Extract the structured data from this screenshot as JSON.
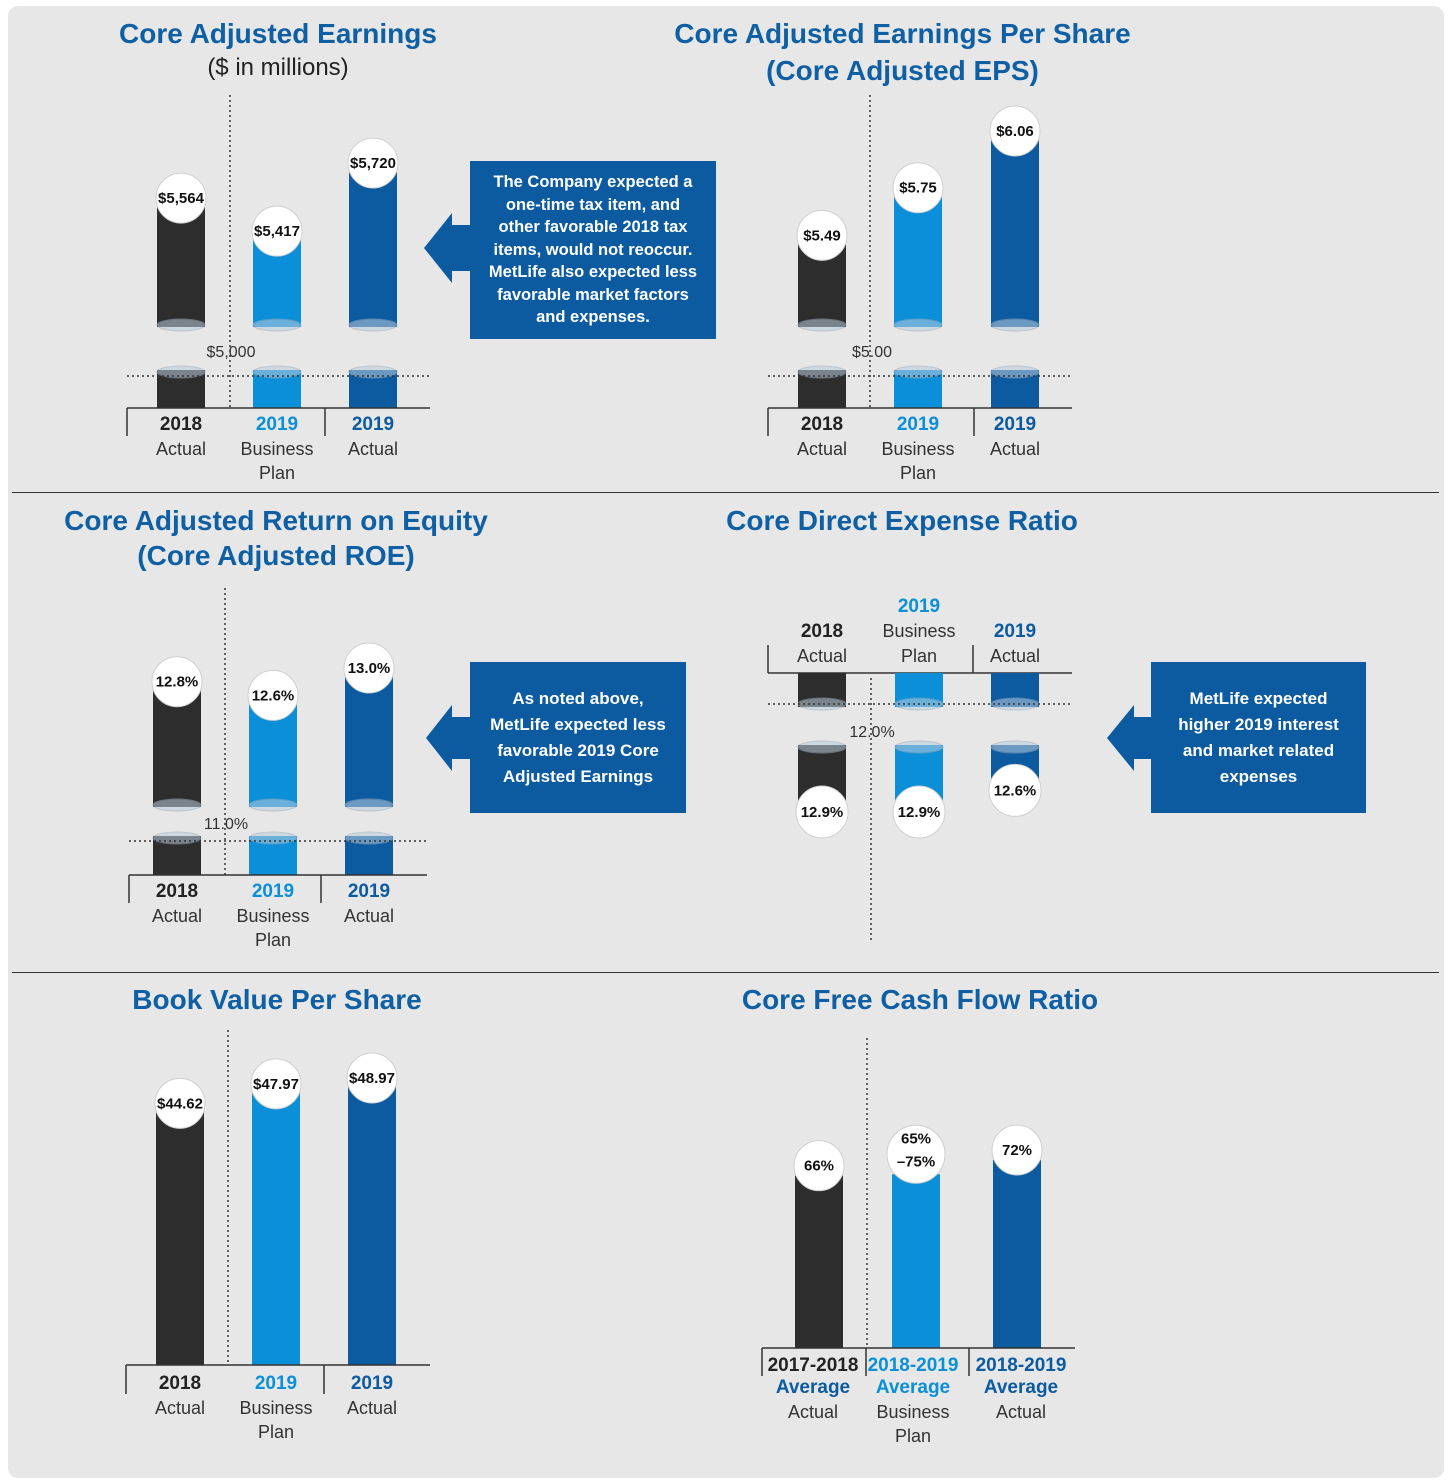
{
  "colors": {
    "actual_2018": "#2d2d2d",
    "plan_2019": "#0a8fd8",
    "actual_2019": "#0c5ba1",
    "title": "#0e5fa3",
    "callout_bg": "#0c5ba1"
  },
  "panels": {
    "earnings": {
      "title": "Core Adjusted Earnings",
      "subtitle": "($ in millions)",
      "baseline_label": "$5,000"
    },
    "eps": {
      "title_line1": "Core Adjusted Earnings Per Share",
      "title_line2": "(Core Adjusted EPS)",
      "baseline_label": "$5.00"
    },
    "roe": {
      "title_line1": "Core Adjusted Return on Equity",
      "title_line2": "(Core Adjusted ROE)",
      "baseline_label": "11.0%"
    },
    "expense": {
      "title": "Core Direct Expense Ratio",
      "baseline_label": "12.0%"
    },
    "bvps": {
      "title": "Book Value Per Share"
    },
    "fcf": {
      "title": "Core Free Cash Flow Ratio"
    }
  },
  "callouts": {
    "earnings": "The Company expected a one-time tax item, and other favorable 2018 tax items, would not reoccur. MetLife also expected less favorable market factors and expenses.",
    "roe": "As noted above, MetLife expected less favorable 2019 Core Adjusted Earnings",
    "expense": "MetLife expected higher 2019 interest and market related expenses"
  },
  "chart_data": [
    {
      "type": "bar",
      "title": "Core Adjusted Earnings",
      "subtitle": "($ in millions)",
      "categories": [
        "2018 Actual",
        "2019 Business Plan",
        "2019 Actual"
      ],
      "values": [
        5564,
        5417,
        5720
      ],
      "value_labels": [
        "$5,564",
        "$5,417",
        "$5,720"
      ],
      "axis_break": true,
      "baseline": 5000,
      "baseline_label": "$5,000",
      "cat_year": [
        "2018",
        "2019",
        "2019"
      ],
      "cat_sub": [
        [
          "Actual"
        ],
        [
          "Business",
          "Plan"
        ],
        [
          "Actual"
        ]
      ]
    },
    {
      "type": "bar",
      "title": "Core Adjusted Earnings Per Share (Core Adjusted EPS)",
      "categories": [
        "2018 Actual",
        "2019 Business Plan",
        "2019 Actual"
      ],
      "values": [
        5.49,
        5.75,
        6.06
      ],
      "value_labels": [
        "$5.49",
        "$5.75",
        "$6.06"
      ],
      "axis_break": true,
      "baseline": 5.0,
      "baseline_label": "$5.00",
      "cat_year": [
        "2018",
        "2019",
        "2019"
      ],
      "cat_sub": [
        [
          "Actual"
        ],
        [
          "Business",
          "Plan"
        ],
        [
          "Actual"
        ]
      ]
    },
    {
      "type": "bar",
      "title": "Core Adjusted Return on Equity (Core Adjusted ROE)",
      "categories": [
        "2018 Actual",
        "2019 Business Plan",
        "2019 Actual"
      ],
      "values": [
        12.8,
        12.6,
        13.0
      ],
      "value_labels": [
        "12.8%",
        "12.6%",
        "13.0%"
      ],
      "axis_break": true,
      "baseline": 11.0,
      "baseline_label": "11.0%",
      "cat_year": [
        "2018",
        "2019",
        "2019"
      ],
      "cat_sub": [
        [
          "Actual"
        ],
        [
          "Business",
          "Plan"
        ],
        [
          "Actual"
        ]
      ]
    },
    {
      "type": "bar",
      "title": "Core Direct Expense Ratio",
      "orientation": "downward",
      "categories": [
        "2018 Actual",
        "2019 Business Plan",
        "2019 Actual"
      ],
      "values": [
        12.9,
        12.9,
        12.6
      ],
      "value_labels": [
        "12.9%",
        "12.9%",
        "12.6%"
      ],
      "axis_break": true,
      "baseline": 12.0,
      "baseline_label": "12.0%",
      "cat_year": [
        "2018",
        "2019",
        "2019"
      ],
      "cat_sub": [
        [
          "Actual"
        ],
        [
          "Business",
          "Plan"
        ],
        [
          "Actual"
        ]
      ]
    },
    {
      "type": "bar",
      "title": "Book Value Per Share",
      "categories": [
        "2018 Actual",
        "2019 Business Plan",
        "2019 Actual"
      ],
      "values": [
        44.62,
        47.97,
        48.97
      ],
      "value_labels": [
        "$44.62",
        "$47.97",
        "$48.97"
      ],
      "cat_year": [
        "2018",
        "2019",
        "2019"
      ],
      "cat_sub": [
        [
          "Actual"
        ],
        [
          "Business",
          "Plan"
        ],
        [
          "Actual"
        ]
      ]
    },
    {
      "type": "bar",
      "title": "Core Free Cash Flow Ratio",
      "categories": [
        "2017-2018 Average Actual",
        "2018-2019 Average Business Plan",
        "2018-2019 Average Actual"
      ],
      "values": [
        66,
        70,
        72
      ],
      "range_2019_plan": [
        65,
        75
      ],
      "value_labels": [
        "66%",
        "65%\n–75%",
        "72%"
      ],
      "cat_year": [
        "2017-2018",
        "2018-2019",
        "2018-2019"
      ],
      "cat_avg": [
        "Average",
        "Average",
        "Average"
      ],
      "cat_sub": [
        [
          "Actual"
        ],
        [
          "Business",
          "Plan"
        ],
        [
          "Actual"
        ]
      ]
    }
  ]
}
